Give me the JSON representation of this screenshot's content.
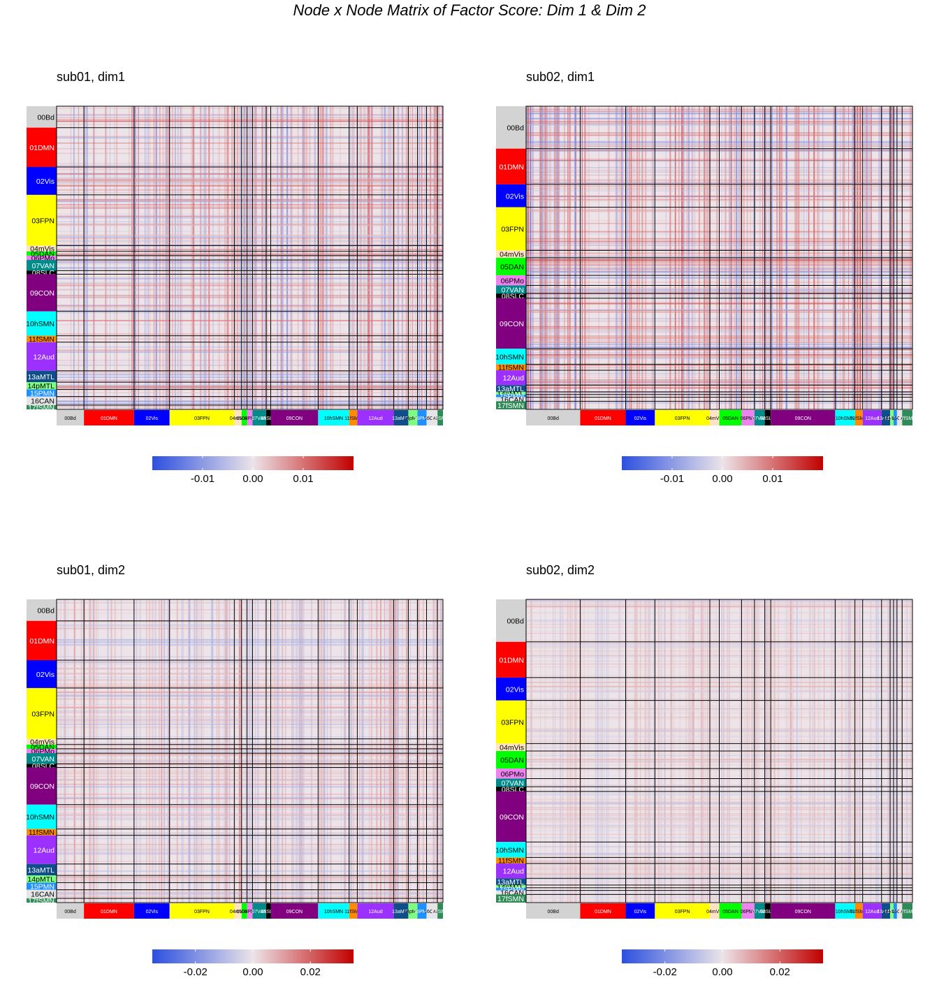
{
  "figure": {
    "title": "Node x Node Matrix of Factor Score: Dim 1 & Dim 2"
  },
  "network_colors": {
    "00Bd": "#d3d3d3",
    "01DMN": "#ff0000",
    "02Vis": "#0000ff",
    "03FPN": "#ffff00",
    "04mVis": "#ffe4c4",
    "05DAN": "#00ff00",
    "06PMo": "#ee82ee",
    "07VAN": "#008b8b",
    "08SLC": "#000000",
    "09CON": "#800080",
    "10hSMN": "#00ffff",
    "11fSMN": "#ff8c00",
    "12Aud": "#9b30ff",
    "13aMTL": "#104e8b",
    "14pMTL": "#7fff7f",
    "15PMN": "#1e90ff",
    "16CAN": "#e5e5e5",
    "17fSMN": "#2e8b57"
  },
  "color_scale": {
    "low": "#2c4fe0",
    "mid": "#ece4e8",
    "high": "#c10000"
  },
  "chart_data": [
    {
      "type": "heatmap",
      "title": "sub01, dim1",
      "networks": [
        "00Bd",
        "01DMN",
        "02Vis",
        "03FPN",
        "04mVis",
        "05DAN",
        "06PMo",
        "07VAN",
        "08SLC",
        "09CON",
        "10hSMN",
        "11fSMN",
        "12Aud",
        "13aMTL",
        "14pMTL",
        "15PMN",
        "16CAN",
        "17fSMN"
      ],
      "network_proportions": [
        30,
        55,
        39,
        71,
        8,
        6,
        6,
        15,
        5,
        52,
        34,
        9,
        40,
        16,
        10,
        10,
        12,
        6
      ],
      "value_range": [
        -0.02,
        0.02
      ],
      "colorbar_ticks": [
        -0.01,
        0.0,
        0.01
      ],
      "colorbar_labels": [
        "-0.01",
        "0.00",
        "0.01"
      ],
      "texture": {
        "noise": 0.45,
        "seed": 11
      }
    },
    {
      "type": "heatmap",
      "title": "sub02, dim1",
      "networks": [
        "00Bd",
        "01DMN",
        "02Vis",
        "03FPN",
        "04mVis",
        "05DAN",
        "06PMo",
        "07VAN",
        "08SLC",
        "09CON",
        "10hSMN",
        "11fSMN",
        "12Aud",
        "13aMTL",
        "14pMTL",
        "15PMN",
        "16CAN",
        "17fSMN"
      ],
      "network_proportions": [
        63,
        53,
        34,
        64,
        11,
        26,
        15,
        12,
        7,
        75,
        23,
        9,
        22,
        10,
        4,
        4,
        6,
        12
      ],
      "value_range": [
        -0.02,
        0.02
      ],
      "colorbar_ticks": [
        -0.01,
        0.0,
        0.01
      ],
      "colorbar_labels": [
        "-0.01",
        "0.00",
        "0.01"
      ],
      "texture": {
        "noise": 0.55,
        "seed": 23
      }
    },
    {
      "type": "heatmap",
      "title": "sub01, dim2",
      "networks": [
        "00Bd",
        "01DMN",
        "02Vis",
        "03FPN",
        "04mVis",
        "05DAN",
        "06PMo",
        "07VAN",
        "08SLC",
        "09CON",
        "10hSMN",
        "11fSMN",
        "12Aud",
        "13aMTL",
        "14pMTL",
        "15PMN",
        "16CAN",
        "17fSMN"
      ],
      "network_proportions": [
        30,
        55,
        39,
        71,
        8,
        6,
        6,
        15,
        5,
        52,
        34,
        9,
        40,
        16,
        10,
        10,
        12,
        6
      ],
      "value_range": [
        -0.035,
        0.035
      ],
      "colorbar_ticks": [
        -0.02,
        0.0,
        0.02
      ],
      "colorbar_labels": [
        "-0.02",
        "0.00",
        "0.02"
      ],
      "texture": {
        "noise": 0.3,
        "seed": 37
      }
    },
    {
      "type": "heatmap",
      "title": "sub02, dim2",
      "networks": [
        "00Bd",
        "01DMN",
        "02Vis",
        "03FPN",
        "04mVis",
        "05DAN",
        "06PMo",
        "07VAN",
        "08SLC",
        "09CON",
        "10hSMN",
        "11fSMN",
        "12Aud",
        "13aMTL",
        "14pMTL",
        "15PMN",
        "16CAN",
        "17fSMN"
      ],
      "network_proportions": [
        63,
        53,
        34,
        64,
        11,
        26,
        15,
        12,
        7,
        75,
        23,
        9,
        22,
        10,
        4,
        4,
        6,
        12
      ],
      "value_range": [
        -0.035,
        0.035
      ],
      "colorbar_ticks": [
        -0.02,
        0.0,
        0.02
      ],
      "colorbar_labels": [
        "-0.02",
        "0.00",
        "0.02"
      ],
      "texture": {
        "noise": 0.2,
        "seed": 51
      }
    }
  ]
}
